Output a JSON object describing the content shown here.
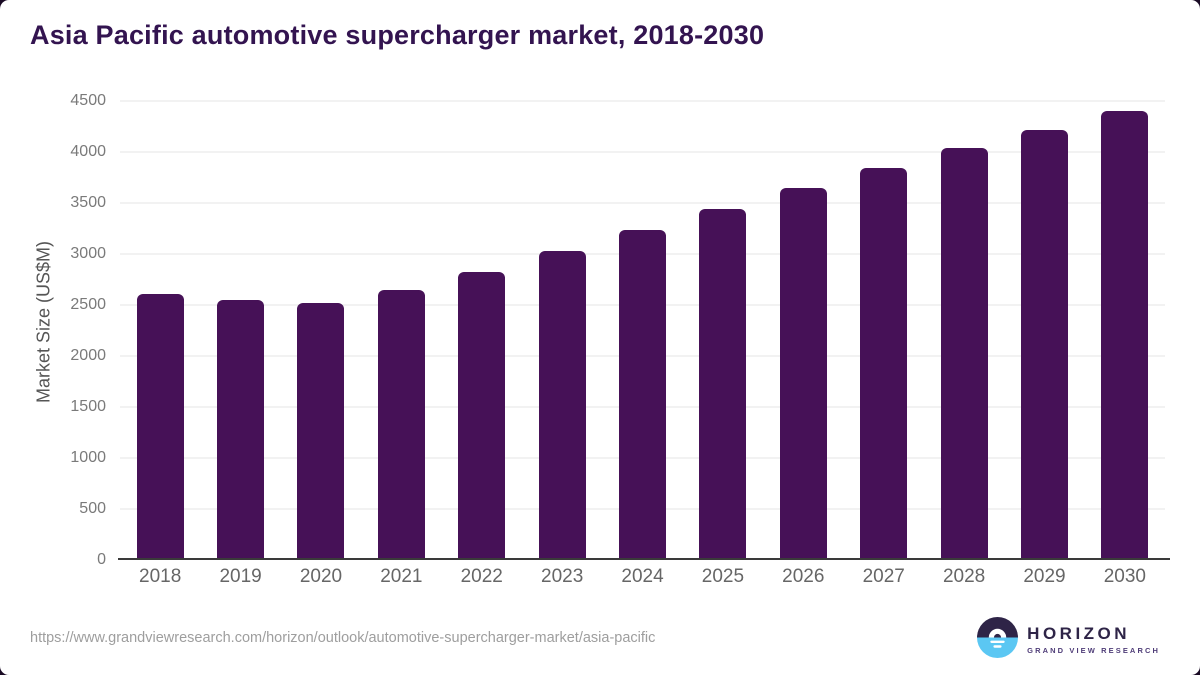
{
  "header": {
    "title": "Asia Pacific automotive supercharger market, 2018-2030"
  },
  "chart_data": {
    "type": "bar",
    "title": "Asia Pacific automotive supercharger market, 2018-2030",
    "categories": [
      "2018",
      "2019",
      "2020",
      "2021",
      "2022",
      "2023",
      "2024",
      "2025",
      "2026",
      "2027",
      "2028",
      "2029",
      "2030"
    ],
    "values": [
      2610,
      2550,
      2515,
      2650,
      2820,
      3030,
      3235,
      3440,
      3645,
      3845,
      4040,
      4215,
      4405
    ],
    "xlabel": "",
    "ylabel": "Market Size (US$M)",
    "ylim": [
      0,
      4500
    ],
    "yticks": [
      0,
      500,
      1000,
      1500,
      2000,
      2500,
      3000,
      3500,
      4000,
      4500
    ],
    "grid": true,
    "legend_position": "none",
    "bar_color": "#461157",
    "gridline_color": "#e6e6e6",
    "axis_line_color": "#3a3a3a",
    "title_color": "#331450"
  },
  "footer": {
    "source_url": "https://www.grandviewresearch.com/horizon/outlook/automotive-supercharger-market/asia-pacific",
    "logo": {
      "brand": "HORIZON",
      "tagline": "GRAND VIEW RESEARCH",
      "mark_top_color": "#2e2447",
      "mark_bottom_color": "#5bc7f3"
    }
  }
}
